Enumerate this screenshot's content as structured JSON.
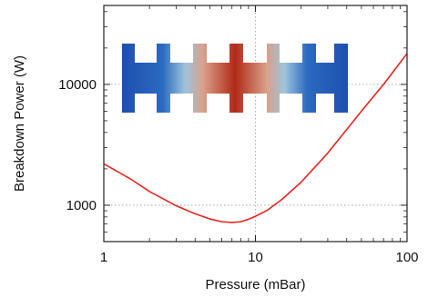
{
  "chart_data": {
    "type": "line",
    "xlabel": "Pressure (mBar)",
    "ylabel": "Breakdown Power (W)",
    "xscale": "log",
    "yscale": "log",
    "xlim": [
      1,
      100
    ],
    "ylim": [
      500,
      45000
    ],
    "grid": true,
    "x_ticks": [
      {
        "value": 1,
        "label": "1"
      },
      {
        "value": 10,
        "label": "10"
      },
      {
        "value": 100,
        "label": "100"
      }
    ],
    "y_ticks": [
      {
        "value": 1000,
        "label": "1000"
      },
      {
        "value": 10000,
        "label": "10000"
      }
    ],
    "series": [
      {
        "color": "#e8231e",
        "x": [
          1,
          1.5,
          2,
          3,
          4,
          5,
          6,
          7,
          8,
          9,
          10,
          12,
          15,
          20,
          30,
          50,
          70,
          100
        ],
        "y": [
          2200,
          1650,
          1300,
          990,
          850,
          770,
          730,
          720,
          730,
          765,
          810,
          910,
          1120,
          1550,
          2700,
          6000,
          10000,
          18000
        ]
      }
    ],
    "inset": {
      "description_icon": "cavity-field-map",
      "colors": {
        "low": "#1f4fb0",
        "mid": "#a8c8e0",
        "high": "#b02a17"
      }
    }
  }
}
